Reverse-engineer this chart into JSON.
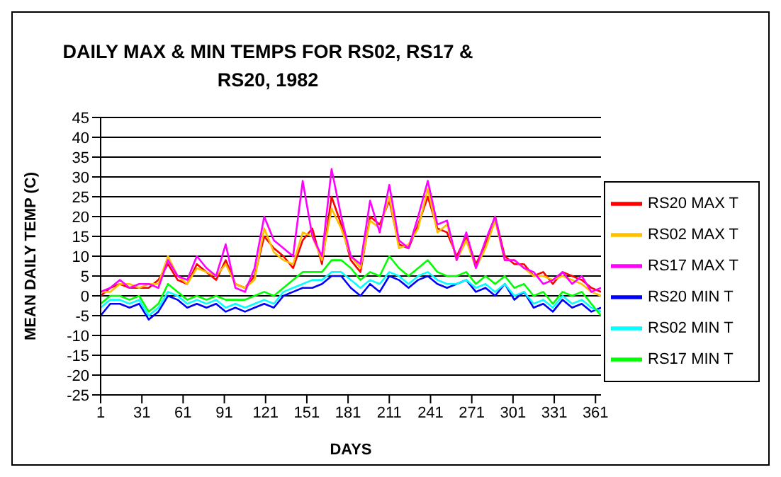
{
  "chart_data": {
    "type": "line",
    "title": "DAILY MAX & MIN TEMPS FOR RS02, RS17 & RS20, 1982",
    "xlabel": "DAYS",
    "ylabel": "MEAN DAILY TEMP (C)",
    "x": [
      1,
      8,
      15,
      22,
      29,
      36,
      43,
      50,
      57,
      64,
      71,
      78,
      85,
      92,
      99,
      106,
      113,
      120,
      127,
      134,
      141,
      148,
      155,
      162,
      169,
      176,
      183,
      190,
      197,
      204,
      211,
      218,
      225,
      232,
      239,
      246,
      253,
      260,
      267,
      274,
      281,
      288,
      295,
      302,
      309,
      316,
      323,
      330,
      337,
      344,
      351,
      358,
      365
    ],
    "xlim": [
      1,
      365
    ],
    "xticks": [
      1,
      31,
      61,
      91,
      121,
      151,
      181,
      211,
      241,
      271,
      301,
      331,
      361
    ],
    "ylim": [
      -25,
      45
    ],
    "yticks": [
      -25,
      -20,
      -15,
      -10,
      -5,
      0,
      5,
      10,
      15,
      20,
      25,
      30,
      35,
      40,
      45
    ],
    "grid": "y",
    "legend": "right",
    "marker": "none",
    "line_style": "solid",
    "series": [
      {
        "name": "RS20 MAX T",
        "color": "#ff0000",
        "values": [
          0,
          2,
          3,
          2,
          2,
          2,
          4,
          8,
          4,
          3,
          8,
          6,
          4,
          9,
          3,
          2,
          5,
          15,
          12,
          10,
          7,
          14,
          17,
          8,
          25,
          18,
          9,
          6,
          20,
          18,
          24,
          13,
          12,
          18,
          25,
          17,
          16,
          10,
          15,
          8,
          13,
          20,
          10,
          8,
          8,
          5,
          6,
          3,
          6,
          5,
          4,
          2,
          1
        ]
      },
      {
        "name": "RS02 MAX T",
        "color": "#ffc000",
        "values": [
          1,
          1,
          3,
          3,
          2,
          3,
          3,
          10,
          5,
          3,
          7,
          6,
          5,
          8,
          3,
          2,
          4,
          17,
          11,
          9,
          8,
          16,
          15,
          9,
          22,
          17,
          10,
          7,
          19,
          17,
          25,
          12,
          13,
          17,
          27,
          16,
          18,
          9,
          14,
          7,
          12,
          19,
          9,
          9,
          7,
          5,
          5,
          4,
          5,
          4,
          3,
          1,
          0
        ]
      },
      {
        "name": "RS17 MAX T",
        "color": "#ff00ff",
        "values": [
          1,
          2,
          4,
          2,
          3,
          3,
          2,
          9,
          5,
          4,
          10,
          7,
          5,
          13,
          2,
          1,
          7,
          20,
          14,
          12,
          10,
          29,
          15,
          10,
          32,
          20,
          10,
          8,
          24,
          16,
          28,
          14,
          12,
          20,
          29,
          18,
          19,
          9,
          16,
          7,
          14,
          20,
          9,
          9,
          7,
          6,
          3,
          4,
          6,
          3,
          5,
          1,
          2
        ]
      },
      {
        "name": "RS20 MIN T",
        "color": "#0000ff",
        "values": [
          -5,
          -2,
          -2,
          -3,
          -2,
          -6,
          -4,
          0,
          -1,
          -3,
          -2,
          -3,
          -2,
          -4,
          -3,
          -4,
          -3,
          -2,
          -3,
          0,
          1,
          2,
          2,
          3,
          5,
          5,
          2,
          0,
          3,
          1,
          5,
          4,
          2,
          4,
          5,
          3,
          2,
          3,
          4,
          1,
          2,
          0,
          3,
          -1,
          1,
          -3,
          -2,
          -4,
          -1,
          -3,
          -2,
          -4,
          -3
        ]
      },
      {
        "name": "RS02 MIN T",
        "color": "#00ffff",
        "values": [
          -3,
          -1,
          -1,
          -2,
          -1,
          -5,
          -3,
          1,
          0,
          -2,
          -1,
          -2,
          -1,
          -3,
          -2,
          -3,
          -2,
          -1,
          -2,
          1,
          2,
          3,
          4,
          4,
          6,
          6,
          4,
          2,
          4,
          3,
          6,
          5,
          3,
          5,
          6,
          4,
          3,
          3,
          4,
          2,
          3,
          1,
          3,
          0,
          1,
          -2,
          -1,
          -3,
          0,
          -2,
          -1,
          -3,
          -4
        ]
      },
      {
        "name": "RS17 MIN T",
        "color": "#00ff00",
        "values": [
          -2,
          0,
          0,
          -1,
          0,
          -4,
          -2,
          3,
          1,
          -1,
          0,
          -1,
          0,
          -1,
          -1,
          -1,
          0,
          1,
          0,
          2,
          4,
          6,
          6,
          6,
          9,
          9,
          7,
          4,
          6,
          5,
          10,
          7,
          5,
          7,
          9,
          6,
          5,
          5,
          6,
          3,
          5,
          3,
          5,
          2,
          3,
          0,
          1,
          -2,
          1,
          0,
          1,
          -2,
          -5
        ]
      }
    ]
  }
}
